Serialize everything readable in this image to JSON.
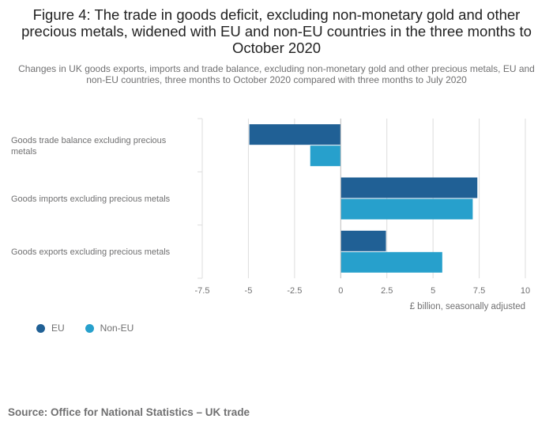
{
  "title": "Figure 4: The trade in goods deficit, excluding non-monetary gold and other precious metals, widened with EU and non-EU countries in the three months to October 2020",
  "subtitle": "Changes in UK goods exports, imports and trade balance, excluding non-monetary gold and other precious metals, EU and non-EU countries, three months to October 2020 compared with three months to July 2020",
  "source": "Source: Office for National Statistics – UK trade",
  "colors": {
    "eu": "#206095",
    "non_eu": "#27a0cc",
    "grid": "#dddddd",
    "axis": "#bbbbbb"
  },
  "chart_data": {
    "type": "bar",
    "orientation": "horizontal",
    "categories": [
      "Goods trade balance excluding precious metals",
      "Goods imports excluding precious metals",
      "Goods exports excluding precious metals"
    ],
    "series": [
      {
        "name": "EU",
        "values": [
          -4.95,
          7.4,
          2.45
        ]
      },
      {
        "name": "Non-EU",
        "values": [
          -1.65,
          7.15,
          5.5
        ]
      }
    ],
    "xlabel": "£ billion, seasonally adjusted",
    "xlim": [
      -7.5,
      10
    ],
    "xticks": [
      -7.5,
      -5,
      -2.5,
      0,
      2.5,
      5,
      7.5,
      10
    ],
    "xtick_labels": [
      "-7.5",
      "-5",
      "-2.5",
      "0",
      "2.5",
      "5",
      "7.5",
      "10"
    ],
    "grid": true,
    "legend_position": "bottom-left"
  }
}
